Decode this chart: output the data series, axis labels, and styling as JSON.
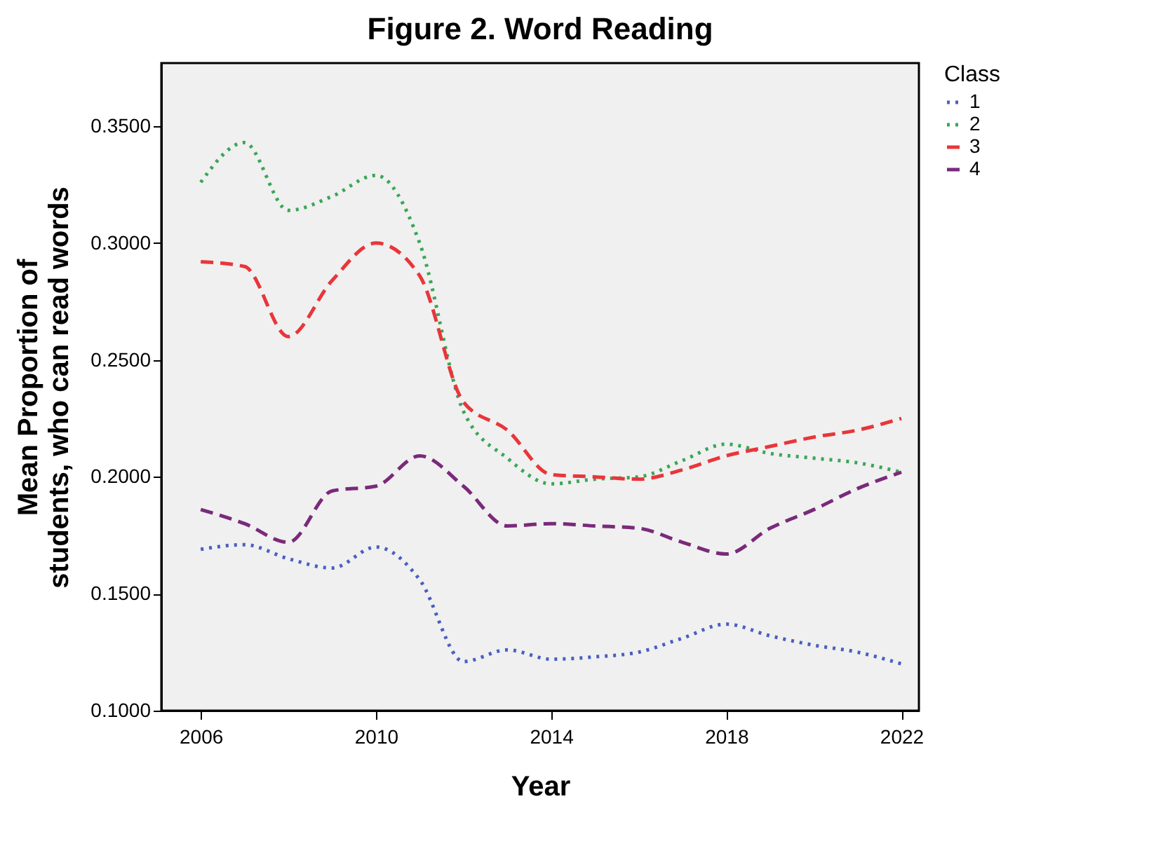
{
  "chart_data": {
    "type": "line",
    "title": "Figure 2. Word Reading",
    "xlabel": "Year",
    "ylabel": "Mean Proportion of students, who can read words",
    "legend_title": "Class",
    "x": [
      2006,
      2007,
      2008,
      2009,
      2010,
      2011,
      2012,
      2013,
      2014,
      2015,
      2016,
      2017,
      2018,
      2019,
      2020,
      2021,
      2022
    ],
    "series": [
      {
        "name": "1",
        "color": "#4a5fc1",
        "line_style": "dotted",
        "values": [
          0.169,
          0.171,
          0.165,
          0.161,
          0.17,
          0.156,
          0.121,
          0.126,
          0.122,
          0.123,
          0.125,
          0.131,
          0.137,
          0.132,
          0.128,
          0.125,
          0.12
        ]
      },
      {
        "name": "2",
        "color": "#3aa655",
        "line_style": "dotted",
        "values": [
          0.326,
          0.343,
          0.314,
          0.32,
          0.329,
          0.3,
          0.228,
          0.208,
          0.197,
          0.199,
          0.2,
          0.207,
          0.214,
          0.21,
          0.208,
          0.206,
          0.202
        ]
      },
      {
        "name": "3",
        "color": "#e8363a",
        "line_style": "dashed",
        "values": [
          0.292,
          0.29,
          0.26,
          0.284,
          0.3,
          0.286,
          0.232,
          0.22,
          0.201,
          0.2,
          0.199,
          0.203,
          0.209,
          0.213,
          0.217,
          0.22,
          0.225
        ]
      },
      {
        "name": "4",
        "color": "#7a2a7a",
        "line_style": "dashed",
        "values": [
          0.186,
          0.18,
          0.172,
          0.194,
          0.196,
          0.209,
          0.196,
          0.179,
          0.18,
          0.179,
          0.178,
          0.172,
          0.167,
          0.178,
          0.186,
          0.195,
          0.202
        ]
      }
    ],
    "xlim": [
      2005.1,
      2022.4
    ],
    "xticks": [
      2006,
      2010,
      2014,
      2018,
      2022
    ],
    "ylim": [
      0.1,
      0.377
    ],
    "yticks": [
      {
        "value": 0.1,
        "label": "0.1000"
      },
      {
        "value": 0.15,
        "label": "0.1500"
      },
      {
        "value": 0.2,
        "label": "0.2000"
      },
      {
        "value": 0.25,
        "label": "0.2500"
      },
      {
        "value": 0.3,
        "label": "0.3000"
      },
      {
        "value": 0.35,
        "label": "0.3500"
      }
    ],
    "grid": false,
    "legend": "right",
    "marker": "none"
  }
}
